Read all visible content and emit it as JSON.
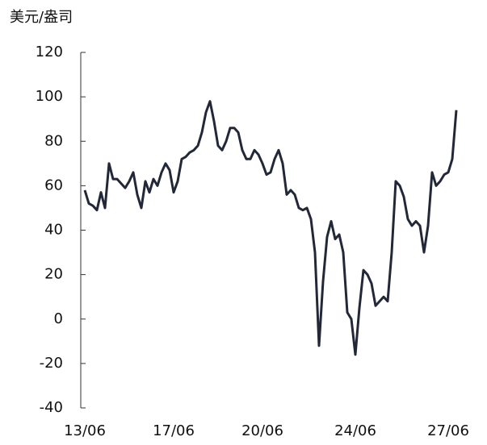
{
  "chart_data": {
    "type": "line",
    "y_label": "美元/盎司",
    "categories": [
      "13/06",
      null,
      null,
      null,
      null,
      null,
      null,
      null,
      null,
      null,
      null,
      null,
      null,
      null,
      null,
      null,
      null,
      null,
      null,
      null,
      null,
      null,
      "17/06",
      null,
      null,
      null,
      null,
      null,
      null,
      null,
      null,
      null,
      null,
      null,
      null,
      null,
      null,
      null,
      null,
      null,
      null,
      null,
      null,
      null,
      "20/06",
      null,
      null,
      null,
      null,
      null,
      null,
      null,
      null,
      null,
      null,
      null,
      null,
      null,
      null,
      null,
      null,
      null,
      null,
      null,
      null,
      null,
      null,
      "24/06",
      null,
      null,
      null,
      null,
      null,
      null,
      null,
      null,
      null,
      null,
      null,
      null,
      null,
      null,
      null,
      null,
      null,
      null,
      null,
      null,
      null,
      null,
      "27/06",
      null,
      null
    ],
    "values": [
      58,
      52,
      51,
      49,
      57,
      50,
      70,
      63,
      63,
      61,
      59,
      62,
      66,
      56,
      50,
      62,
      57,
      63,
      60,
      66,
      70,
      67,
      57,
      62,
      72,
      73,
      75,
      76,
      78,
      84,
      93,
      98,
      89,
      78,
      76,
      80,
      86,
      86,
      84,
      76,
      72,
      72,
      76,
      74,
      70,
      65,
      66,
      72,
      76,
      70,
      56,
      58,
      56,
      50,
      49,
      50,
      45,
      30,
      -12,
      17,
      37,
      44,
      36,
      38,
      30,
      3,
      0,
      -16,
      5,
      22,
      20,
      16,
      6,
      8,
      10,
      8,
      30,
      62,
      60,
      55,
      45,
      42,
      44,
      42,
      30,
      42,
      66,
      60,
      62,
      65,
      66,
      72,
      94
    ],
    "color": "#232838",
    "ylim": [
      -40,
      120
    ],
    "yticks": [
      -40,
      -20,
      0,
      20,
      40,
      60,
      80,
      100,
      120
    ]
  }
}
